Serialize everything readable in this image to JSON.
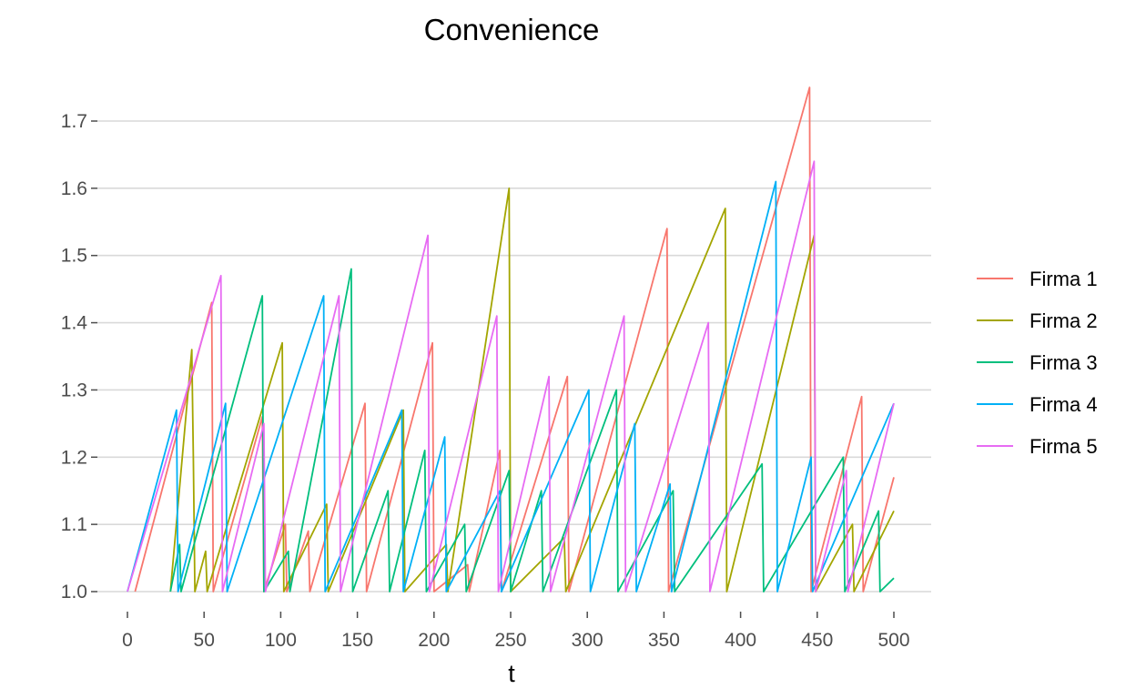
{
  "chart_data": {
    "type": "line",
    "title": "Convenience",
    "xlabel": "t",
    "ylabel": "",
    "xlim": [
      0,
      500
    ],
    "ylim": [
      1.0,
      1.7
    ],
    "x_ticks": [
      "0",
      "50",
      "100",
      "150",
      "200",
      "250",
      "300",
      "350",
      "400",
      "450",
      "500"
    ],
    "y_ticks": [
      "1.0",
      "1.1",
      "1.2",
      "1.3",
      "1.4",
      "1.5",
      "1.6",
      "1.7"
    ],
    "grid": true,
    "legend_position": "right",
    "legend_title": "",
    "series": [
      {
        "name": "Firma 1",
        "color": "#F8766D",
        "points": [
          [
            5,
            1.0
          ],
          [
            55,
            1.43
          ],
          [
            56,
            1.0
          ],
          [
            62,
            1.05
          ],
          [
            88,
            1.26
          ],
          [
            89,
            1.0
          ],
          [
            103,
            1.1
          ],
          [
            104,
            1.0
          ],
          [
            118,
            1.09
          ],
          [
            119,
            1.0
          ],
          [
            155,
            1.28
          ],
          [
            156,
            1.0
          ],
          [
            199,
            1.37
          ],
          [
            200,
            1.0
          ],
          [
            222,
            1.04
          ],
          [
            223,
            1.0
          ],
          [
            243,
            1.21
          ],
          [
            244,
            1.0
          ],
          [
            287,
            1.32
          ],
          [
            288,
            1.0
          ],
          [
            352,
            1.54
          ],
          [
            353,
            1.0
          ],
          [
            445,
            1.75
          ],
          [
            446,
            1.0
          ],
          [
            479,
            1.29
          ],
          [
            480,
            1.0
          ],
          [
            500,
            1.17
          ]
        ]
      },
      {
        "name": "Firma 2",
        "color": "#A3A500",
        "points": [
          [
            28,
            1.0
          ],
          [
            42,
            1.36
          ],
          [
            43,
            1.2
          ],
          [
            44,
            1.0
          ],
          [
            51,
            1.06
          ],
          [
            52,
            1.0
          ],
          [
            101,
            1.37
          ],
          [
            102,
            1.0
          ],
          [
            130,
            1.13
          ],
          [
            131,
            1.0
          ],
          [
            180,
            1.27
          ],
          [
            181,
            1.0
          ],
          [
            208,
            1.07
          ],
          [
            209,
            1.0
          ],
          [
            249,
            1.6
          ],
          [
            250,
            1.0
          ],
          [
            285,
            1.08
          ],
          [
            286,
            1.0
          ],
          [
            390,
            1.57
          ],
          [
            391,
            1.0
          ],
          [
            448,
            1.53
          ],
          [
            449,
            1.0
          ],
          [
            473,
            1.1
          ],
          [
            474,
            1.0
          ],
          [
            500,
            1.12
          ]
        ]
      },
      {
        "name": "Firma 3",
        "color": "#00BF7D",
        "points": [
          [
            28,
            1.0
          ],
          [
            34,
            1.07
          ],
          [
            35,
            1.0
          ],
          [
            88,
            1.44
          ],
          [
            89,
            1.0
          ],
          [
            105,
            1.06
          ],
          [
            106,
            1.0
          ],
          [
            146,
            1.48
          ],
          [
            147,
            1.0
          ],
          [
            170,
            1.15
          ],
          [
            171,
            1.0
          ],
          [
            194,
            1.21
          ],
          [
            195,
            1.0
          ],
          [
            220,
            1.1
          ],
          [
            221,
            1.0
          ],
          [
            249,
            1.18
          ],
          [
            250,
            1.0
          ],
          [
            270,
            1.15
          ],
          [
            271,
            1.0
          ],
          [
            319,
            1.3
          ],
          [
            320,
            1.0
          ],
          [
            356,
            1.15
          ],
          [
            357,
            1.0
          ],
          [
            414,
            1.19
          ],
          [
            415,
            1.0
          ],
          [
            467,
            1.2
          ],
          [
            468,
            1.0
          ],
          [
            490,
            1.12
          ],
          [
            491,
            1.0
          ],
          [
            500,
            1.02
          ]
        ]
      },
      {
        "name": "Firma 4",
        "color": "#00B0F6",
        "points": [
          [
            0,
            1.0
          ],
          [
            32,
            1.27
          ],
          [
            33,
            1.0
          ],
          [
            64,
            1.28
          ],
          [
            65,
            1.0
          ],
          [
            128,
            1.44
          ],
          [
            129,
            1.0
          ],
          [
            179,
            1.27
          ],
          [
            180,
            1.0
          ],
          [
            207,
            1.23
          ],
          [
            208,
            1.0
          ],
          [
            243,
            1.15
          ],
          [
            244,
            1.0
          ],
          [
            301,
            1.3
          ],
          [
            302,
            1.0
          ],
          [
            331,
            1.25
          ],
          [
            332,
            1.0
          ],
          [
            354,
            1.16
          ],
          [
            355,
            1.0
          ],
          [
            423,
            1.61
          ],
          [
            424,
            1.0
          ],
          [
            446,
            1.2
          ],
          [
            447,
            1.0
          ],
          [
            500,
            1.28
          ]
        ]
      },
      {
        "name": "Firma 5",
        "color": "#E76BF3",
        "points": [
          [
            0,
            1.0
          ],
          [
            61,
            1.47
          ],
          [
            62,
            1.0
          ],
          [
            89,
            1.25
          ],
          [
            90,
            1.0
          ],
          [
            138,
            1.44
          ],
          [
            139,
            1.0
          ],
          [
            196,
            1.53
          ],
          [
            197,
            1.0
          ],
          [
            241,
            1.41
          ],
          [
            242,
            1.0
          ],
          [
            275,
            1.32
          ],
          [
            276,
            1.0
          ],
          [
            324,
            1.41
          ],
          [
            325,
            1.0
          ],
          [
            379,
            1.4
          ],
          [
            380,
            1.0
          ],
          [
            448,
            1.64
          ],
          [
            449,
            1.0
          ],
          [
            469,
            1.18
          ],
          [
            470,
            1.0
          ],
          [
            500,
            1.28
          ]
        ]
      }
    ]
  }
}
